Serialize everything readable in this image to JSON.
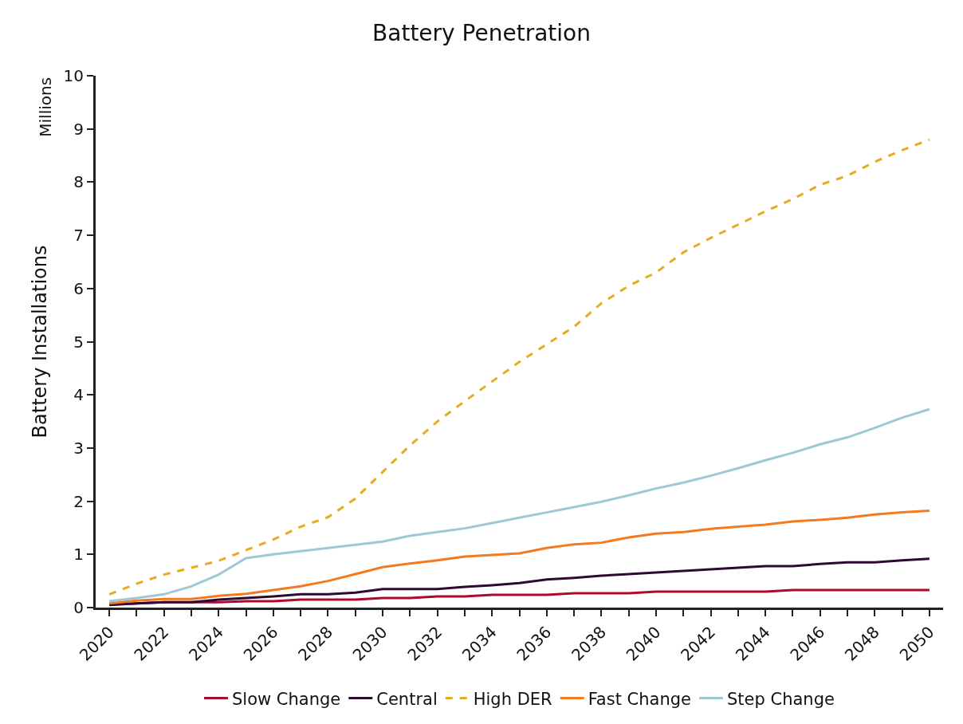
{
  "chart_data": {
    "type": "line",
    "title": "Battery Penetration",
    "ylabel": "Battery Installations",
    "annotations": [
      "Millions"
    ],
    "categories": [
      "2020",
      null,
      "2022",
      null,
      "2024",
      null,
      "2026",
      null,
      "2028",
      null,
      "2030",
      null,
      "2032",
      null,
      "2034",
      null,
      "2036",
      null,
      "2038",
      null,
      "2040",
      null,
      "2042",
      null,
      "2044",
      null,
      "2046",
      null,
      "2048",
      null,
      "2050"
    ],
    "series": [
      {
        "name": "Slow Change",
        "color": "#ae0a2d",
        "values": [
          0.06,
          0.08,
          0.1,
          0.1,
          0.1,
          0.12,
          0.12,
          0.15,
          0.15,
          0.15,
          0.18,
          0.18,
          0.21,
          0.21,
          0.24,
          0.24,
          0.24,
          0.27,
          0.27,
          0.27,
          0.3,
          0.3,
          0.3,
          0.3,
          0.3,
          0.33,
          0.33,
          0.33,
          0.33,
          0.33,
          0.33
        ]
      },
      {
        "name": "Central",
        "color": "#2e0a33",
        "values": [
          0.05,
          0.08,
          0.1,
          0.1,
          0.15,
          0.18,
          0.21,
          0.25,
          0.25,
          0.28,
          0.35,
          0.35,
          0.35,
          0.39,
          0.42,
          0.46,
          0.53,
          0.56,
          0.6,
          0.63,
          0.66,
          0.69,
          0.72,
          0.75,
          0.78,
          0.78,
          0.82,
          0.85,
          0.85,
          0.89,
          0.92
        ]
      },
      {
        "name": "High DER",
        "color": "#e6ac1c",
        "line_style": "dashed",
        "values": [
          0.25,
          0.45,
          0.62,
          0.75,
          0.88,
          1.08,
          1.28,
          1.52,
          1.7,
          2.05,
          2.55,
          3.05,
          3.5,
          3.88,
          4.25,
          4.62,
          4.95,
          5.28,
          5.72,
          6.05,
          6.3,
          6.68,
          6.95,
          7.2,
          7.45,
          7.68,
          7.95,
          8.12,
          8.38,
          8.6,
          8.8
        ]
      },
      {
        "name": "Fast Change",
        "color": "#f47a20",
        "values": [
          0.08,
          0.13,
          0.16,
          0.16,
          0.22,
          0.26,
          0.33,
          0.4,
          0.5,
          0.63,
          0.76,
          0.83,
          0.89,
          0.96,
          0.99,
          1.02,
          1.12,
          1.19,
          1.22,
          1.32,
          1.39,
          1.42,
          1.48,
          1.52,
          1.56,
          1.62,
          1.65,
          1.69,
          1.75,
          1.79,
          1.82
        ]
      },
      {
        "name": "Step Change",
        "color": "#9ec8d4",
        "values": [
          0.12,
          0.18,
          0.25,
          0.4,
          0.62,
          0.93,
          1.0,
          1.06,
          1.12,
          1.18,
          1.24,
          1.35,
          1.42,
          1.49,
          1.59,
          1.69,
          1.79,
          1.89,
          1.99,
          2.11,
          2.24,
          2.35,
          2.48,
          2.62,
          2.77,
          2.91,
          3.07,
          3.2,
          3.38,
          3.57,
          3.73
        ]
      }
    ],
    "ylim": [
      0,
      10
    ],
    "yticks": [
      0,
      1,
      2,
      3,
      4,
      5,
      6,
      7,
      8,
      9,
      10
    ],
    "legend": "bottom",
    "line_style": "solid",
    "marker": "none"
  }
}
